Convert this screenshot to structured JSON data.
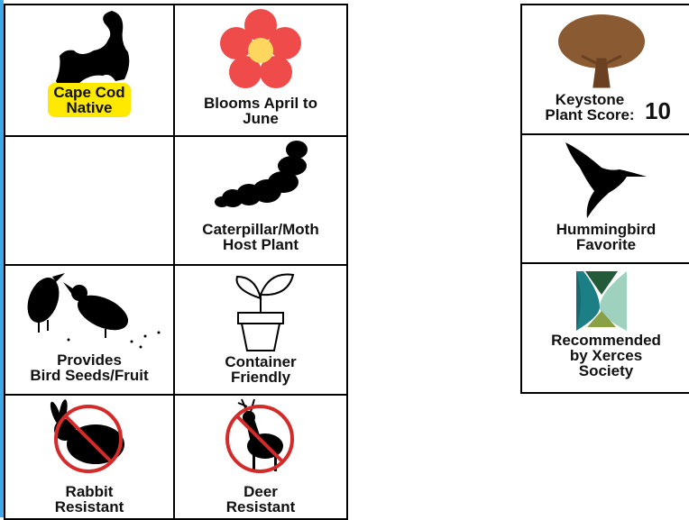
{
  "left_grid": [
    {
      "label": [
        "Cape Cod",
        "Native"
      ]
    },
    {
      "label": [
        "Blooms April to",
        "June"
      ]
    },
    {
      "label": [
        "Caterpillar/Moth",
        "Host Plant"
      ]
    },
    {
      "label": [
        "Provides",
        "Bird Seeds/Fruit"
      ]
    },
    {
      "label": [
        "Container",
        "Friendly"
      ]
    },
    {
      "label": [
        "Rabbit",
        "Resistant"
      ]
    },
    {
      "label": [
        "Deer",
        "Resistant"
      ]
    }
  ],
  "right_column": [
    {
      "label": [
        "Keystone",
        "Plant Score:"
      ],
      "score": 10
    },
    {
      "label": [
        "Hummingbird",
        "Favorite"
      ]
    },
    {
      "label": [
        "Recommended",
        "by Xerces",
        "Society"
      ]
    }
  ]
}
